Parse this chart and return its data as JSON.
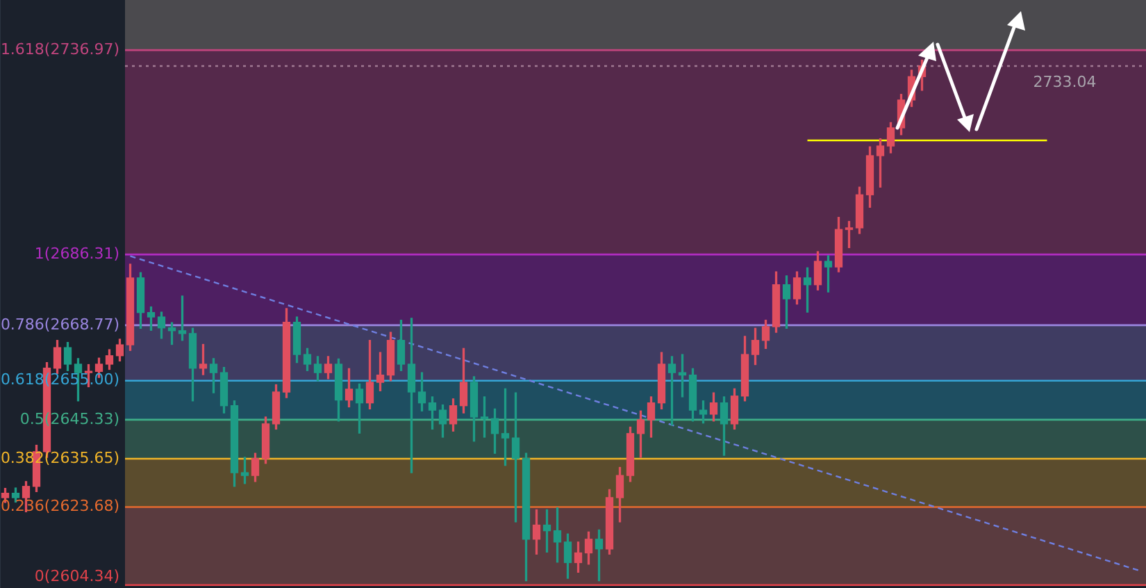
{
  "chart_data": {
    "type": "candlestick",
    "categories": [
      null,
      null,
      null,
      null,
      null,
      null,
      null,
      null,
      null,
      null,
      null,
      null,
      null,
      null,
      null,
      null,
      null,
      null,
      null,
      null,
      null,
      null,
      null,
      null,
      null,
      null,
      null,
      null,
      null,
      null,
      null,
      null,
      null,
      null,
      null,
      null,
      null,
      null,
      null,
      null,
      null,
      null,
      null,
      null,
      null,
      null,
      null,
      null,
      null,
      null,
      null,
      null,
      null,
      null,
      null,
      null,
      null,
      null,
      null,
      null,
      null,
      null,
      null,
      null,
      null,
      null,
      null,
      null,
      null,
      null,
      null,
      null,
      null,
      null,
      null,
      null,
      null,
      null,
      null,
      null,
      null,
      null,
      null,
      null,
      null,
      null,
      null,
      null,
      null,
      null,
      null,
      null,
      null,
      null,
      null,
      null,
      null,
      null,
      null,
      null,
      null,
      null,
      null,
      null,
      null,
      null,
      null,
      null,
      null,
      null
    ],
    "series": [
      {
        "ohlc": [
          [
            2626.0,
            2628.3,
            2624.8,
            2627.1
          ],
          [
            2627.1,
            2628.4,
            2624.9,
            2626.0
          ],
          [
            2626.0,
            2630.0,
            2622.5,
            2628.8
          ],
          [
            2628.8,
            2639.0,
            2627.5,
            2637.4
          ],
          [
            2637.4,
            2659.5,
            2636.0,
            2658.1
          ],
          [
            2658.1,
            2665.0,
            2656.8,
            2663.2
          ],
          [
            2663.2,
            2664.5,
            2657.5,
            2659.1
          ],
          [
            2659.1,
            2660.5,
            2650.0,
            2657.0
          ],
          [
            2657.0,
            2659.0,
            2653.5,
            2657.3
          ],
          [
            2657.3,
            2660.6,
            2655.8,
            2659.1
          ],
          [
            2659.1,
            2662.7,
            2657.8,
            2661.2
          ],
          [
            2661.2,
            2665.3,
            2659.9,
            2663.9
          ],
          [
            2663.9,
            2683.9,
            2662.5,
            2680.5
          ],
          [
            2680.5,
            2681.8,
            2668.0,
            2671.9
          ],
          [
            2671.9,
            2673.3,
            2667.5,
            2670.8
          ],
          [
            2670.8,
            2672.0,
            2665.5,
            2668.1
          ],
          [
            2668.1,
            2669.4,
            2664.0,
            2667.4
          ],
          [
            2667.4,
            2676.0,
            2665.0,
            2666.7
          ],
          [
            2666.7,
            2668.0,
            2650.0,
            2658.1
          ],
          [
            2658.1,
            2664.0,
            2656.5,
            2659.1
          ],
          [
            2659.1,
            2660.5,
            2652.0,
            2657.0
          ],
          [
            2657.0,
            2658.3,
            2647.0,
            2648.8
          ],
          [
            2648.8,
            2650.0,
            2628.8,
            2632.2
          ],
          [
            2632.2,
            2636.0,
            2629.5,
            2631.5
          ],
          [
            2631.5,
            2637.0,
            2630.0,
            2635.7
          ],
          [
            2635.7,
            2646.0,
            2634.5,
            2644.3
          ],
          [
            2644.3,
            2654.0,
            2643.0,
            2652.2
          ],
          [
            2652.2,
            2672.9,
            2650.8,
            2669.5
          ],
          [
            2669.5,
            2670.8,
            2659.5,
            2661.5
          ],
          [
            2661.5,
            2663.0,
            2657.5,
            2659.1
          ],
          [
            2659.1,
            2661.0,
            2655.0,
            2657.0
          ],
          [
            2657.0,
            2661.0,
            2655.5,
            2659.1
          ],
          [
            2659.1,
            2660.4,
            2645.0,
            2650.2
          ],
          [
            2650.2,
            2658.0,
            2648.5,
            2652.9
          ],
          [
            2652.9,
            2654.2,
            2642.0,
            2649.5
          ],
          [
            2649.5,
            2665.0,
            2648.0,
            2654.6
          ],
          [
            2654.6,
            2662.0,
            2652.5,
            2656.4
          ],
          [
            2656.4,
            2667.0,
            2655.0,
            2665.0
          ],
          [
            2665.0,
            2670.0,
            2657.5,
            2659.1
          ],
          [
            2659.1,
            2670.5,
            2632.2,
            2652.2
          ],
          [
            2652.2,
            2657.0,
            2647.5,
            2649.5
          ],
          [
            2649.5,
            2651.0,
            2643.0,
            2647.7
          ],
          [
            2647.7,
            2649.0,
            2641.0,
            2644.3
          ],
          [
            2644.3,
            2650.5,
            2642.5,
            2648.8
          ],
          [
            2648.8,
            2663.0,
            2647.0,
            2654.6
          ],
          [
            2654.6,
            2656.0,
            2640.0,
            2646.0
          ],
          [
            2646.0,
            2651.0,
            2641.0,
            2645.6
          ],
          [
            2645.6,
            2648.0,
            2637.0,
            2641.9
          ],
          [
            2641.9,
            2653.0,
            2634.0,
            2640.8
          ],
          [
            2640.8,
            2652.0,
            2620.0,
            2635.7
          ],
          [
            2635.7,
            2637.0,
            2605.4,
            2615.7
          ],
          [
            2615.7,
            2623.0,
            2612.0,
            2619.2
          ],
          [
            2619.2,
            2623.0,
            2612.5,
            2617.8
          ],
          [
            2617.8,
            2623.5,
            2610.0,
            2615.0
          ],
          [
            2615.0,
            2617.0,
            2606.0,
            2609.9
          ],
          [
            2609.9,
            2615.0,
            2607.5,
            2612.3
          ],
          [
            2612.3,
            2617.5,
            2609.5,
            2615.7
          ],
          [
            2615.7,
            2618.0,
            2605.4,
            2613.3
          ],
          [
            2613.3,
            2628.0,
            2612.0,
            2626.0
          ],
          [
            2626.0,
            2633.5,
            2620.0,
            2631.5
          ],
          [
            2631.5,
            2643.5,
            2630.0,
            2641.9
          ],
          [
            2641.9,
            2647.5,
            2636.0,
            2645.3
          ],
          [
            2645.3,
            2651.0,
            2641.0,
            2649.5
          ],
          [
            2649.5,
            2662.0,
            2648.0,
            2659.1
          ],
          [
            2659.1,
            2661.0,
            2644.0,
            2657.0
          ],
          [
            2657.0,
            2661.5,
            2651.0,
            2656.4
          ],
          [
            2656.4,
            2658.0,
            2645.0,
            2647.7
          ],
          [
            2647.7,
            2650.0,
            2644.5,
            2646.7
          ],
          [
            2646.7,
            2652.0,
            2645.0,
            2649.5
          ],
          [
            2649.5,
            2651.0,
            2636.5,
            2644.3
          ],
          [
            2644.3,
            2653.0,
            2643.0,
            2651.2
          ],
          [
            2651.2,
            2666.0,
            2650.0,
            2661.5
          ],
          [
            2661.5,
            2668.0,
            2659.0,
            2665.0
          ],
          [
            2665.0,
            2670.0,
            2663.0,
            2668.4
          ],
          [
            2668.4,
            2682.0,
            2667.0,
            2678.8
          ],
          [
            2678.8,
            2681.0,
            2668.0,
            2675.3
          ],
          [
            2675.3,
            2682.0,
            2674.0,
            2680.5
          ],
          [
            2680.5,
            2683.0,
            2672.0,
            2678.8
          ],
          [
            2678.8,
            2687.0,
            2677.5,
            2684.6
          ],
          [
            2684.6,
            2686.0,
            2677.0,
            2683.2
          ],
          [
            2683.2,
            2695.5,
            2682.0,
            2692.5
          ],
          [
            2692.5,
            2694.5,
            2688.0,
            2692.9
          ],
          [
            2692.9,
            2703.0,
            2691.5,
            2701.1
          ],
          [
            2701.1,
            2713.0,
            2698.0,
            2710.8
          ],
          [
            2710.8,
            2715.0,
            2703.0,
            2713.2
          ],
          [
            2713.2,
            2719.0,
            2711.5,
            2717.7
          ],
          [
            2717.7,
            2726.0,
            2716.0,
            2724.6
          ],
          [
            2724.6,
            2732.0,
            2723.0,
            2730.4
          ],
          [
            2730.4,
            2734.5,
            2727.0,
            2733.04
          ],
          null,
          null,
          null,
          null,
          null,
          null,
          null,
          null,
          null,
          null,
          null,
          null,
          null,
          null,
          null,
          null,
          null,
          null,
          null,
          null,
          null
        ],
        "colors": [
          "#e04f5f",
          "#1e9c86",
          "#e04f5f",
          "#e04f5f",
          "#e04f5f",
          "#e04f5f",
          "#1e9c86",
          "#1e9c86",
          "#e04f5f",
          "#e04f5f",
          "#e04f5f",
          "#e04f5f",
          "#e04f5f",
          "#1e9c86",
          "#1e9c86",
          "#1e9c86",
          "#1e9c86",
          "#1e9c86",
          "#1e9c86",
          "#e04f5f",
          "#1e9c86",
          "#1e9c86",
          "#1e9c86",
          "#1e9c86",
          "#e04f5f",
          "#e04f5f",
          "#e04f5f",
          "#e04f5f",
          "#1e9c86",
          "#1e9c86",
          "#1e9c86",
          "#e04f5f",
          "#1e9c86",
          "#e04f5f",
          "#1e9c86",
          "#e04f5f",
          "#e04f5f",
          "#e04f5f",
          "#1e9c86",
          "#1e9c86",
          "#1e9c86",
          "#1e9c86",
          "#1e9c86",
          "#e04f5f",
          "#e04f5f",
          "#1e9c86",
          "#1e9c86",
          "#1e9c86",
          "#1e9c86",
          "#1e9c86",
          "#1e9c86",
          "#e04f5f",
          "#1e9c86",
          "#1e9c86",
          "#1e9c86",
          "#e04f5f",
          "#e04f5f",
          "#1e9c86",
          "#e04f5f",
          "#e04f5f",
          "#e04f5f",
          "#e04f5f",
          "#e04f5f",
          "#e04f5f",
          "#1e9c86",
          "#1e9c86",
          "#1e9c86",
          "#1e9c86",
          "#e04f5f",
          "#1e9c86",
          "#e04f5f",
          "#e04f5f",
          "#e04f5f",
          "#e04f5f",
          "#e04f5f",
          "#1e9c86",
          "#e04f5f",
          "#1e9c86",
          "#e04f5f",
          "#1e9c86",
          "#e04f5f",
          "#e04f5f",
          "#e04f5f",
          "#e04f5f",
          "#e04f5f",
          "#e04f5f",
          "#e04f5f",
          "#e04f5f",
          "#e04f5f",
          null,
          null,
          null,
          null,
          null,
          null,
          null,
          null,
          null,
          null,
          null,
          null,
          null,
          null,
          null,
          null,
          null,
          null,
          null,
          null,
          null
        ]
      },
      {
        "type": "line",
        "color": "#6f7fe0",
        "line_style": "dashed",
        "marker": "none",
        "values": [
          null,
          null,
          null,
          null,
          null,
          null,
          null,
          null,
          null,
          null,
          null,
          null,
          2685.9,
          null,
          null,
          null,
          null,
          null,
          null,
          null,
          null,
          null,
          null,
          null,
          null,
          null,
          null,
          null,
          null,
          null,
          null,
          null,
          null,
          null,
          null,
          null,
          null,
          null,
          null,
          null,
          null,
          null,
          null,
          null,
          null,
          null,
          null,
          null,
          null,
          null,
          null,
          null,
          null,
          null,
          null,
          null,
          null,
          null,
          null,
          null,
          null,
          null,
          null,
          null,
          null,
          null,
          null,
          null,
          null,
          null,
          null,
          null,
          null,
          null,
          null,
          null,
          null,
          null,
          null,
          null,
          null,
          null,
          null,
          null,
          null,
          null,
          null,
          null,
          null,
          null,
          null,
          null,
          null,
          null,
          null,
          null,
          null,
          null,
          null,
          null,
          null,
          null,
          null,
          null,
          null,
          null,
          null,
          null,
          null,
          2607.8
        ]
      },
      {
        "type": "line",
        "color": "#ffff00",
        "line_style": "solid",
        "marker": "none",
        "values": [
          null,
          null,
          null,
          null,
          null,
          null,
          null,
          null,
          null,
          null,
          null,
          null,
          null,
          null,
          null,
          null,
          null,
          null,
          null,
          null,
          null,
          null,
          null,
          null,
          null,
          null,
          null,
          null,
          null,
          null,
          null,
          null,
          null,
          null,
          null,
          null,
          null,
          null,
          null,
          null,
          null,
          null,
          null,
          null,
          null,
          null,
          null,
          null,
          null,
          null,
          null,
          null,
          null,
          null,
          null,
          null,
          null,
          null,
          null,
          null,
          null,
          null,
          null,
          null,
          null,
          null,
          null,
          null,
          null,
          null,
          null,
          null,
          null,
          null,
          null,
          null,
          null,
          2714.6,
          null,
          null,
          null,
          null,
          null,
          null,
          null,
          null,
          null,
          null,
          null,
          null,
          null,
          null,
          null,
          null,
          null,
          null,
          null,
          null,
          null,
          null,
          2714.6,
          null,
          null,
          null,
          null,
          null,
          null,
          null,
          null,
          null
        ]
      }
    ],
    "ylim": [
      2603.6,
      2749.4
    ],
    "bands": [
      {
        "axis": "y",
        "from": 2604.34,
        "to": 2623.68,
        "color": "#5a3b3f"
      },
      {
        "axis": "y",
        "from": 2623.68,
        "to": 2635.65,
        "color": "#5b4c2d"
      },
      {
        "axis": "y",
        "from": 2635.65,
        "to": 2645.33,
        "color": "#2d5049"
      },
      {
        "axis": "y",
        "from": 2645.33,
        "to": 2655.0,
        "color": "#1e4e61"
      },
      {
        "axis": "y",
        "from": 2655.0,
        "to": 2668.77,
        "color": "#3f3c62"
      },
      {
        "axis": "y",
        "from": 2668.77,
        "to": 2686.31,
        "color": "#4e1f62"
      },
      {
        "axis": "y",
        "from": 2686.31,
        "to": 2736.97,
        "color": "#55294b"
      },
      {
        "axis": "y",
        "from": 2736.97,
        "to": 2749.4,
        "color": "#4b4a4e"
      }
    ],
    "ref_lines": [
      {
        "axis": "y",
        "value": 2736.97,
        "label": "1.618(2736.97)",
        "color": "#c2457e",
        "line_style": "solid"
      },
      {
        "axis": "y",
        "value": 2686.31,
        "label": "1(2686.31)",
        "color": "#b22cc2",
        "line_style": "solid"
      },
      {
        "axis": "y",
        "value": 2668.77,
        "label": "0.786(2668.77)",
        "color": "#9a86e0",
        "line_style": "solid"
      },
      {
        "axis": "y",
        "value": 2655.0,
        "label": "0.618(2655.00)",
        "color": "#35a6d6",
        "line_style": "solid"
      },
      {
        "axis": "y",
        "value": 2645.33,
        "label": "0.5(2645.33)",
        "color": "#3fae88",
        "line_style": "solid"
      },
      {
        "axis": "y",
        "value": 2635.65,
        "label": "0.382(2635.65)",
        "color": "#f0b429",
        "line_style": "solid"
      },
      {
        "axis": "y",
        "value": 2623.68,
        "label": "0.236(2623.68)",
        "color": "#e66a2e",
        "line_style": "solid"
      },
      {
        "axis": "y",
        "value": 2604.34,
        "label": "0(2604.34)",
        "color": "#e0424a",
        "line_style": "solid"
      },
      {
        "axis": "y",
        "value": 2733.04,
        "label": "2733.04",
        "color": "#a07a92",
        "line_style": "dotted"
      }
    ],
    "legend": false,
    "grid": false
  }
}
